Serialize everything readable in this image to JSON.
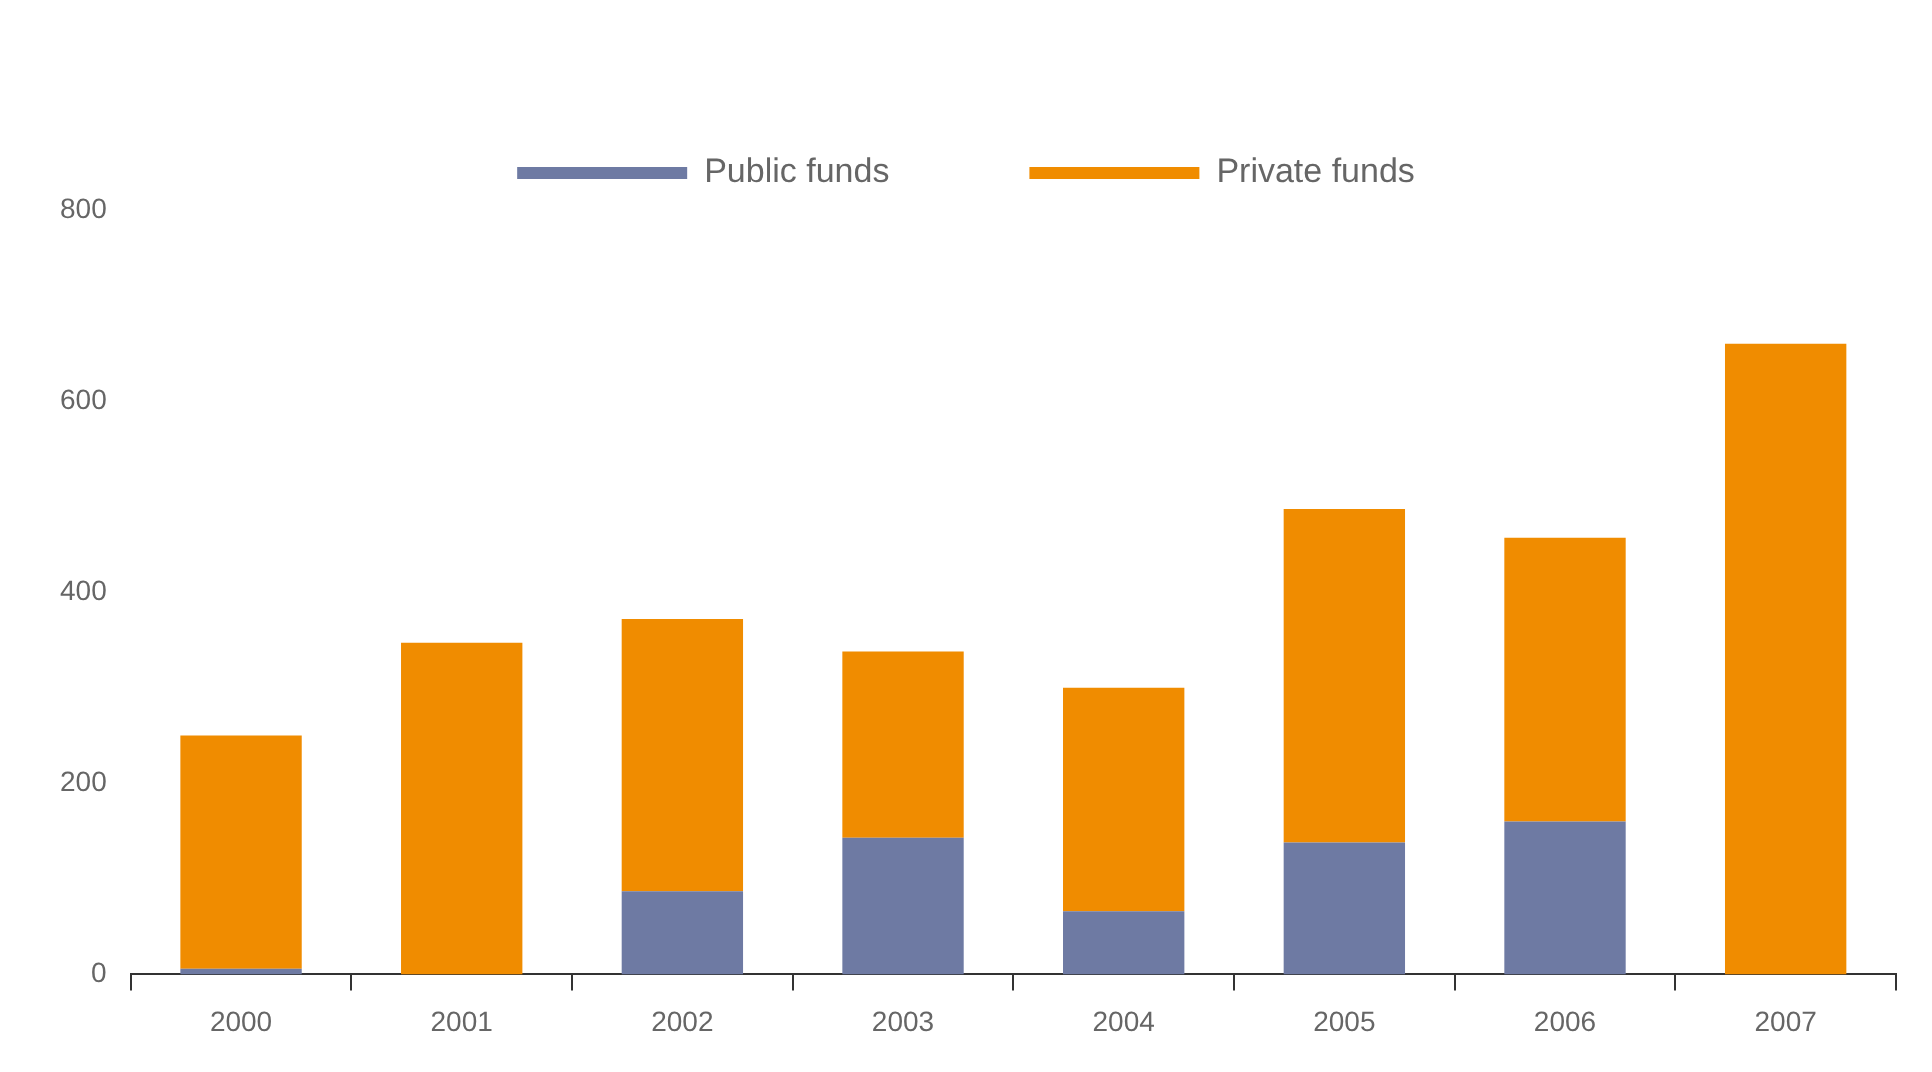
{
  "chart_data": {
    "type": "bar",
    "stacked": true,
    "categories": [
      "2000",
      "2001",
      "2002",
      "2003",
      "2004",
      "2005",
      "2006",
      "2007"
    ],
    "series": [
      {
        "name": "Public funds",
        "color": "#6e7aa3",
        "values": [
          6,
          0,
          87,
          143,
          66,
          138,
          160,
          0
        ]
      },
      {
        "name": "Private funds",
        "color": "#f08c00",
        "values": [
          244,
          347,
          285,
          195,
          234,
          349,
          297,
          660
        ]
      }
    ],
    "ylim": [
      0,
      800
    ],
    "yticks": [
      0,
      200,
      400,
      600,
      800
    ],
    "grid": false,
    "legend": "top"
  }
}
